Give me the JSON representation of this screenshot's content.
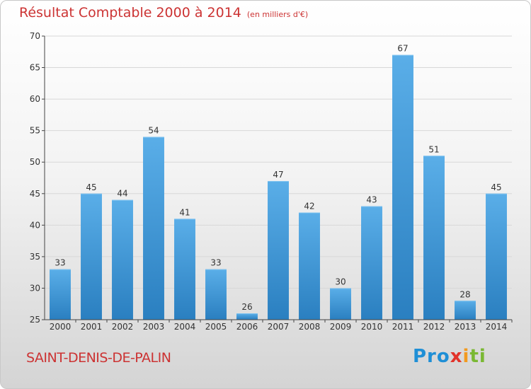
{
  "header": {
    "title": "Résultat Comptable 2000 à 2014",
    "subtitle": "(en milliers d'€)"
  },
  "footer": {
    "commune": "SAINT-DENIS-DE-PALIN",
    "logo": [
      "Pro",
      "x",
      "i",
      "ti"
    ]
  },
  "chart_data": {
    "type": "bar",
    "title": "Résultat Comptable 2000 à 2014",
    "subtitle": "(en milliers d'€)",
    "categories": [
      "2000",
      "2001",
      "2002",
      "2003",
      "2004",
      "2005",
      "2006",
      "2007",
      "2008",
      "2009",
      "2010",
      "2011",
      "2012",
      "2013",
      "2014"
    ],
    "values": [
      33,
      45,
      44,
      54,
      41,
      33,
      26,
      47,
      42,
      30,
      43,
      67,
      51,
      28,
      45
    ],
    "ylim": [
      25,
      70
    ],
    "yticks": [
      25,
      30,
      35,
      40,
      45,
      50,
      55,
      60,
      65,
      70
    ],
    "xlabel": "",
    "ylabel": "",
    "grid": true,
    "colors": {
      "bar_light": "#5aaee8",
      "bar_dark": "#2a7fc0",
      "grid": "#d8d8d8",
      "axis": "#444444",
      "text": "#333333"
    }
  }
}
